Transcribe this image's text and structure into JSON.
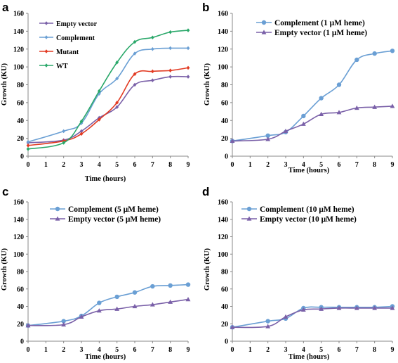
{
  "chart_data": [
    {
      "panel": "a",
      "type": "line",
      "xlabel": "Time (hours)",
      "ylabel": "Growth (KU)",
      "xlim": [
        0,
        9
      ],
      "ylim": [
        0,
        160
      ],
      "xticks": [
        0,
        1,
        2,
        3,
        4,
        5,
        6,
        7,
        8,
        9
      ],
      "yticks": [
        0,
        20,
        40,
        60,
        80,
        100,
        120,
        140,
        160
      ],
      "grid": false,
      "legend": "top-left",
      "series": [
        {
          "name": "Empty vector",
          "color": "#7a60a8",
          "marker": "diamond",
          "x": [
            0,
            2,
            3,
            4,
            5,
            6,
            7,
            8,
            9
          ],
          "y": [
            15,
            18,
            28,
            43,
            55,
            80,
            85,
            89,
            89
          ]
        },
        {
          "name": "Complement",
          "color": "#6a9fd4",
          "marker": "diamond",
          "x": [
            0,
            2,
            3,
            4,
            5,
            6,
            7,
            8,
            9
          ],
          "y": [
            16,
            28,
            37,
            70,
            87,
            115,
            120,
            121,
            121
          ]
        },
        {
          "name": "Mutant",
          "color": "#e23a22",
          "marker": "diamond",
          "x": [
            0,
            2,
            3,
            4,
            5,
            6,
            7,
            8,
            9
          ],
          "y": [
            12,
            17,
            25,
            41,
            60,
            92,
            95,
            96,
            99
          ]
        },
        {
          "name": "WT",
          "color": "#2aa86a",
          "marker": "diamond",
          "x": [
            0,
            2,
            3,
            4,
            5,
            6,
            7,
            8,
            9
          ],
          "y": [
            8,
            15,
            39,
            73,
            105,
            128,
            133,
            139,
            141
          ]
        }
      ]
    },
    {
      "panel": "b",
      "type": "line",
      "xlabel": "Time (hours)",
      "ylabel": "Growth (KU)",
      "xlim": [
        0,
        9
      ],
      "ylim": [
        0,
        160
      ],
      "xticks": [
        0,
        1,
        2,
        3,
        4,
        5,
        6,
        7,
        8,
        9
      ],
      "yticks": [
        0,
        20,
        40,
        60,
        80,
        100,
        120,
        140,
        160
      ],
      "grid": false,
      "legend": "top-center",
      "series": [
        {
          "name": "Complement (1 μM heme)",
          "color": "#6a9fd4",
          "marker": "circle",
          "x": [
            0,
            2,
            3,
            4,
            5,
            6,
            7,
            8,
            9
          ],
          "y": [
            17,
            23,
            27,
            45,
            65,
            80,
            108,
            115,
            118
          ]
        },
        {
          "name": "Empty vector (1 μM heme)",
          "color": "#7a60a8",
          "marker": "triangle",
          "x": [
            0,
            2,
            3,
            4,
            5,
            6,
            7,
            8,
            9
          ],
          "y": [
            17,
            19,
            28,
            36,
            47,
            49,
            54,
            55,
            56
          ]
        }
      ]
    },
    {
      "panel": "c",
      "type": "line",
      "xlabel": "Time (hours)",
      "ylabel": "Growth (KU)",
      "xlim": [
        0,
        9
      ],
      "ylim": [
        0,
        160
      ],
      "xticks": [
        0,
        1,
        2,
        3,
        4,
        5,
        6,
        7,
        8,
        9
      ],
      "yticks": [
        0,
        20,
        40,
        60,
        80,
        100,
        120,
        140,
        160
      ],
      "grid": false,
      "legend": "top-center",
      "series": [
        {
          "name": "Complement (5 μM heme)",
          "color": "#6a9fd4",
          "marker": "circle",
          "x": [
            0,
            2,
            3,
            4,
            5,
            6,
            7,
            8,
            9
          ],
          "y": [
            18,
            23,
            29,
            44,
            51,
            56,
            63,
            64,
            65
          ]
        },
        {
          "name": "Empty vector (5 μM heme)",
          "color": "#7a60a8",
          "marker": "triangle",
          "x": [
            0,
            2,
            3,
            4,
            5,
            6,
            7,
            8,
            9
          ],
          "y": [
            18,
            19,
            28,
            35,
            37,
            40,
            42,
            45,
            48
          ]
        }
      ]
    },
    {
      "panel": "d",
      "type": "line",
      "xlabel": "Time (hours)",
      "ylabel": "Growth (KU)",
      "xlim": [
        0,
        9
      ],
      "ylim": [
        0,
        160
      ],
      "xticks": [
        0,
        1,
        2,
        3,
        4,
        5,
        6,
        7,
        8,
        9
      ],
      "yticks": [
        0,
        20,
        40,
        60,
        80,
        100,
        120,
        140,
        160
      ],
      "grid": false,
      "legend": "top-left",
      "series": [
        {
          "name": "Complement (10 μM heme)",
          "color": "#6a9fd4",
          "marker": "circle",
          "x": [
            0,
            2,
            3,
            4,
            5,
            6,
            7,
            8,
            9
          ],
          "y": [
            16,
            23,
            26,
            38,
            39,
            39,
            39,
            39,
            40
          ]
        },
        {
          "name": "Empty vector (10 μM heme)",
          "color": "#7a60a8",
          "marker": "triangle",
          "x": [
            0,
            2,
            3,
            4,
            5,
            6,
            7,
            8,
            9
          ],
          "y": [
            16,
            17,
            28,
            36,
            37,
            38,
            38,
            38,
            38
          ]
        }
      ]
    }
  ]
}
